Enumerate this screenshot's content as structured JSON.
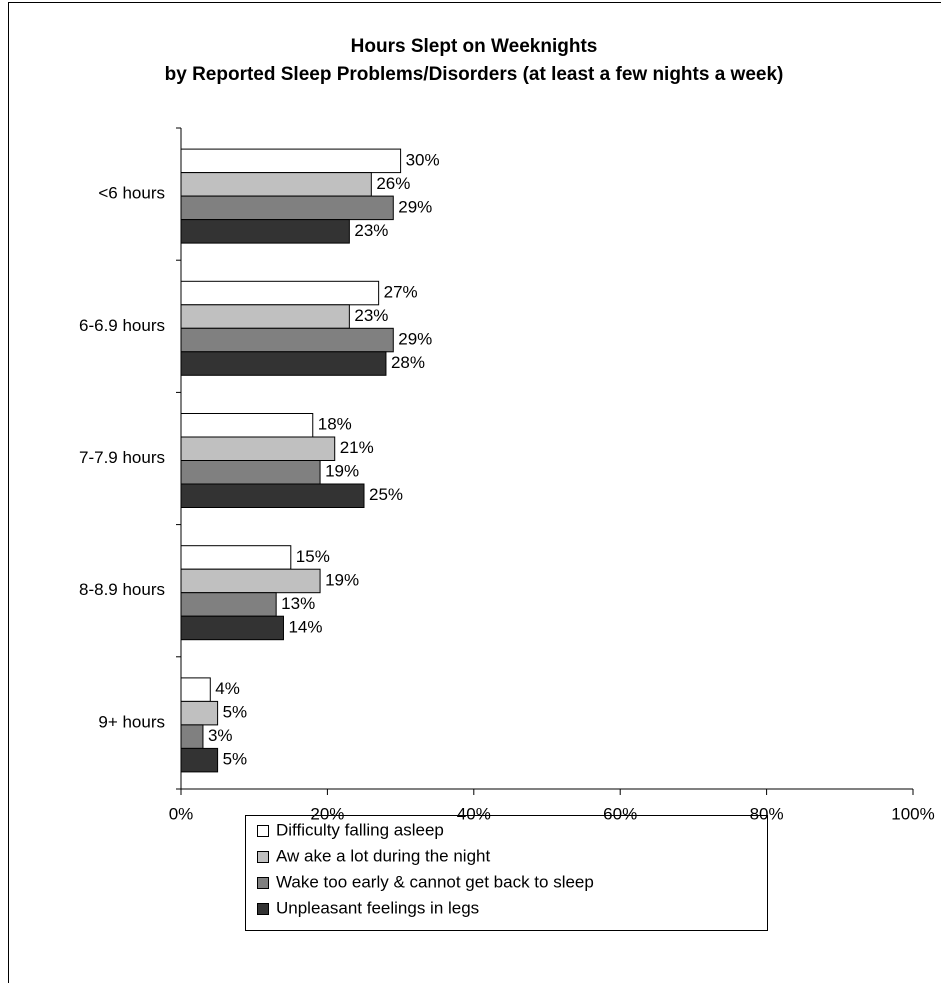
{
  "chart_data": {
    "type": "bar",
    "orientation": "horizontal",
    "title": "Hours Slept on Weeknights",
    "subtitle": "by Reported Sleep Problems/Disorders (at least a few nights a week)",
    "categories": [
      "<6 hours",
      "6-6.9 hours",
      "7-7.9 hours",
      "8-8.9 hours",
      "9+ hours"
    ],
    "series": [
      {
        "name": "Difficulty falling asleep",
        "color": "#ffffff",
        "values": [
          30,
          27,
          18,
          15,
          4
        ],
        "value_labels": [
          "30%",
          "27%",
          "18%",
          "15%",
          "4%"
        ]
      },
      {
        "name": "Aw ake a lot during the night",
        "color": "#c0c0c0",
        "values": [
          26,
          23,
          21,
          19,
          5
        ],
        "value_labels": [
          "26%",
          "23%",
          "21%",
          "19%",
          "5%"
        ]
      },
      {
        "name": "Wake too early & cannot get back to sleep",
        "color": "#808080",
        "values": [
          29,
          29,
          19,
          13,
          3
        ],
        "value_labels": [
          "29%",
          "29%",
          "19%",
          "13%",
          "3%"
        ]
      },
      {
        "name": "Unpleasant feelings in legs",
        "color": "#333333",
        "values": [
          23,
          28,
          25,
          14,
          5
        ],
        "value_labels": [
          "23%",
          "28%",
          "25%",
          "14%",
          "5%"
        ]
      }
    ],
    "xlim": [
      0,
      100
    ],
    "xticks": [
      {
        "value": 0,
        "label": "0%"
      },
      {
        "value": 20,
        "label": "20%"
      },
      {
        "value": 40,
        "label": "40%"
      },
      {
        "value": 60,
        "label": "60%"
      },
      {
        "value": 80,
        "label": "80%"
      },
      {
        "value": 100,
        "label": "100%"
      }
    ],
    "legend": "bottom"
  }
}
